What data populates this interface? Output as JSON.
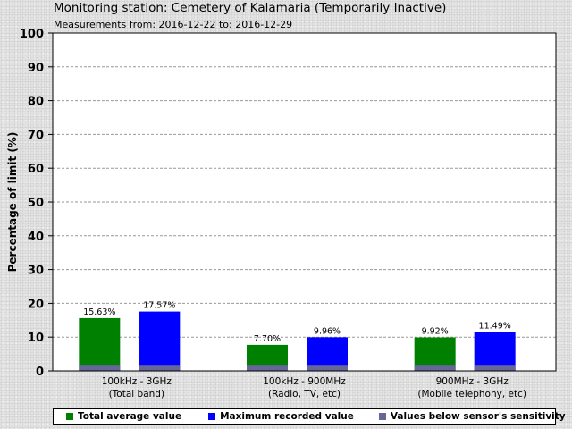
{
  "header": {
    "title": "Monitoring station: Cemetery of Kalamaria (Temporarily Inactive)",
    "subtitle": "Measurements from: 2016-12-22 to: 2016-12-29"
  },
  "colors": {
    "total_average": "#008000",
    "maximum": "#0000ff",
    "below_sensitivity": "#666699"
  },
  "chart_data": {
    "type": "bar",
    "ylabel": "Percentage of limit (%)",
    "ylim": [
      0,
      100
    ],
    "yticks": [
      0,
      10,
      20,
      30,
      40,
      50,
      60,
      70,
      80,
      90,
      100
    ],
    "grid": true,
    "legend_position": "bottom",
    "categories": [
      {
        "line1": "100kHz - 3GHz",
        "line2": "(Total band)"
      },
      {
        "line1": "100kHz - 900MHz",
        "line2": "(Radio, TV, etc)"
      },
      {
        "line1": "900MHz - 3GHz",
        "line2": "(Mobile telephony, etc)"
      }
    ],
    "below_sensitivity_value": 1,
    "series": [
      {
        "name": "Total average value",
        "values": [
          15.63,
          7.7,
          9.92
        ],
        "labels": [
          "15.63%",
          "7.70%",
          "9.92%"
        ]
      },
      {
        "name": "Maximum recorded value",
        "values": [
          17.57,
          9.96,
          11.49
        ],
        "labels": [
          "17.57%",
          "9.96%",
          "11.49%"
        ]
      }
    ],
    "legend": [
      "Total average value",
      "Maximum recorded value",
      "Values below sensor's sensitivity"
    ]
  }
}
